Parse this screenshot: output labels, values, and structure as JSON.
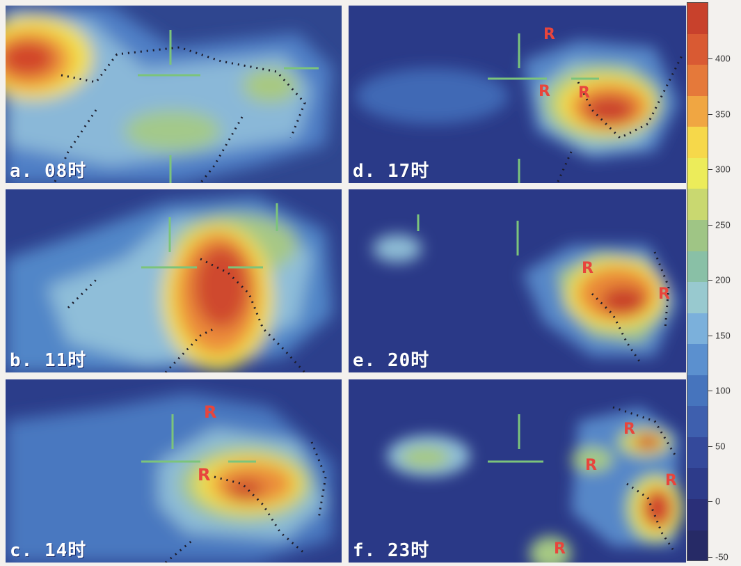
{
  "panels": [
    {
      "id": "a",
      "label": "a. 08时"
    },
    {
      "id": "b",
      "label": "b. 11时"
    },
    {
      "id": "c",
      "label": "c. 14时"
    },
    {
      "id": "d",
      "label": "d. 17时"
    },
    {
      "id": "e",
      "label": "e. 20时"
    },
    {
      "id": "f",
      "label": "f. 23时"
    }
  ],
  "colorbar": {
    "ticks": [
      "400",
      "350",
      "300",
      "250",
      "200",
      "150",
      "100",
      "50",
      "0",
      "-50"
    ],
    "colors": [
      "#c8412c",
      "#d95a33",
      "#e5793a",
      "#f0a642",
      "#f6d84a",
      "#ecec5a",
      "#c9d870",
      "#9fc585",
      "#89c0a6",
      "#98c9cf",
      "#7bb0db",
      "#5b90cf",
      "#4674bd",
      "#3e5fae",
      "#34499b",
      "#2d3b8a",
      "#2a2f78",
      "#262a66"
    ]
  }
}
